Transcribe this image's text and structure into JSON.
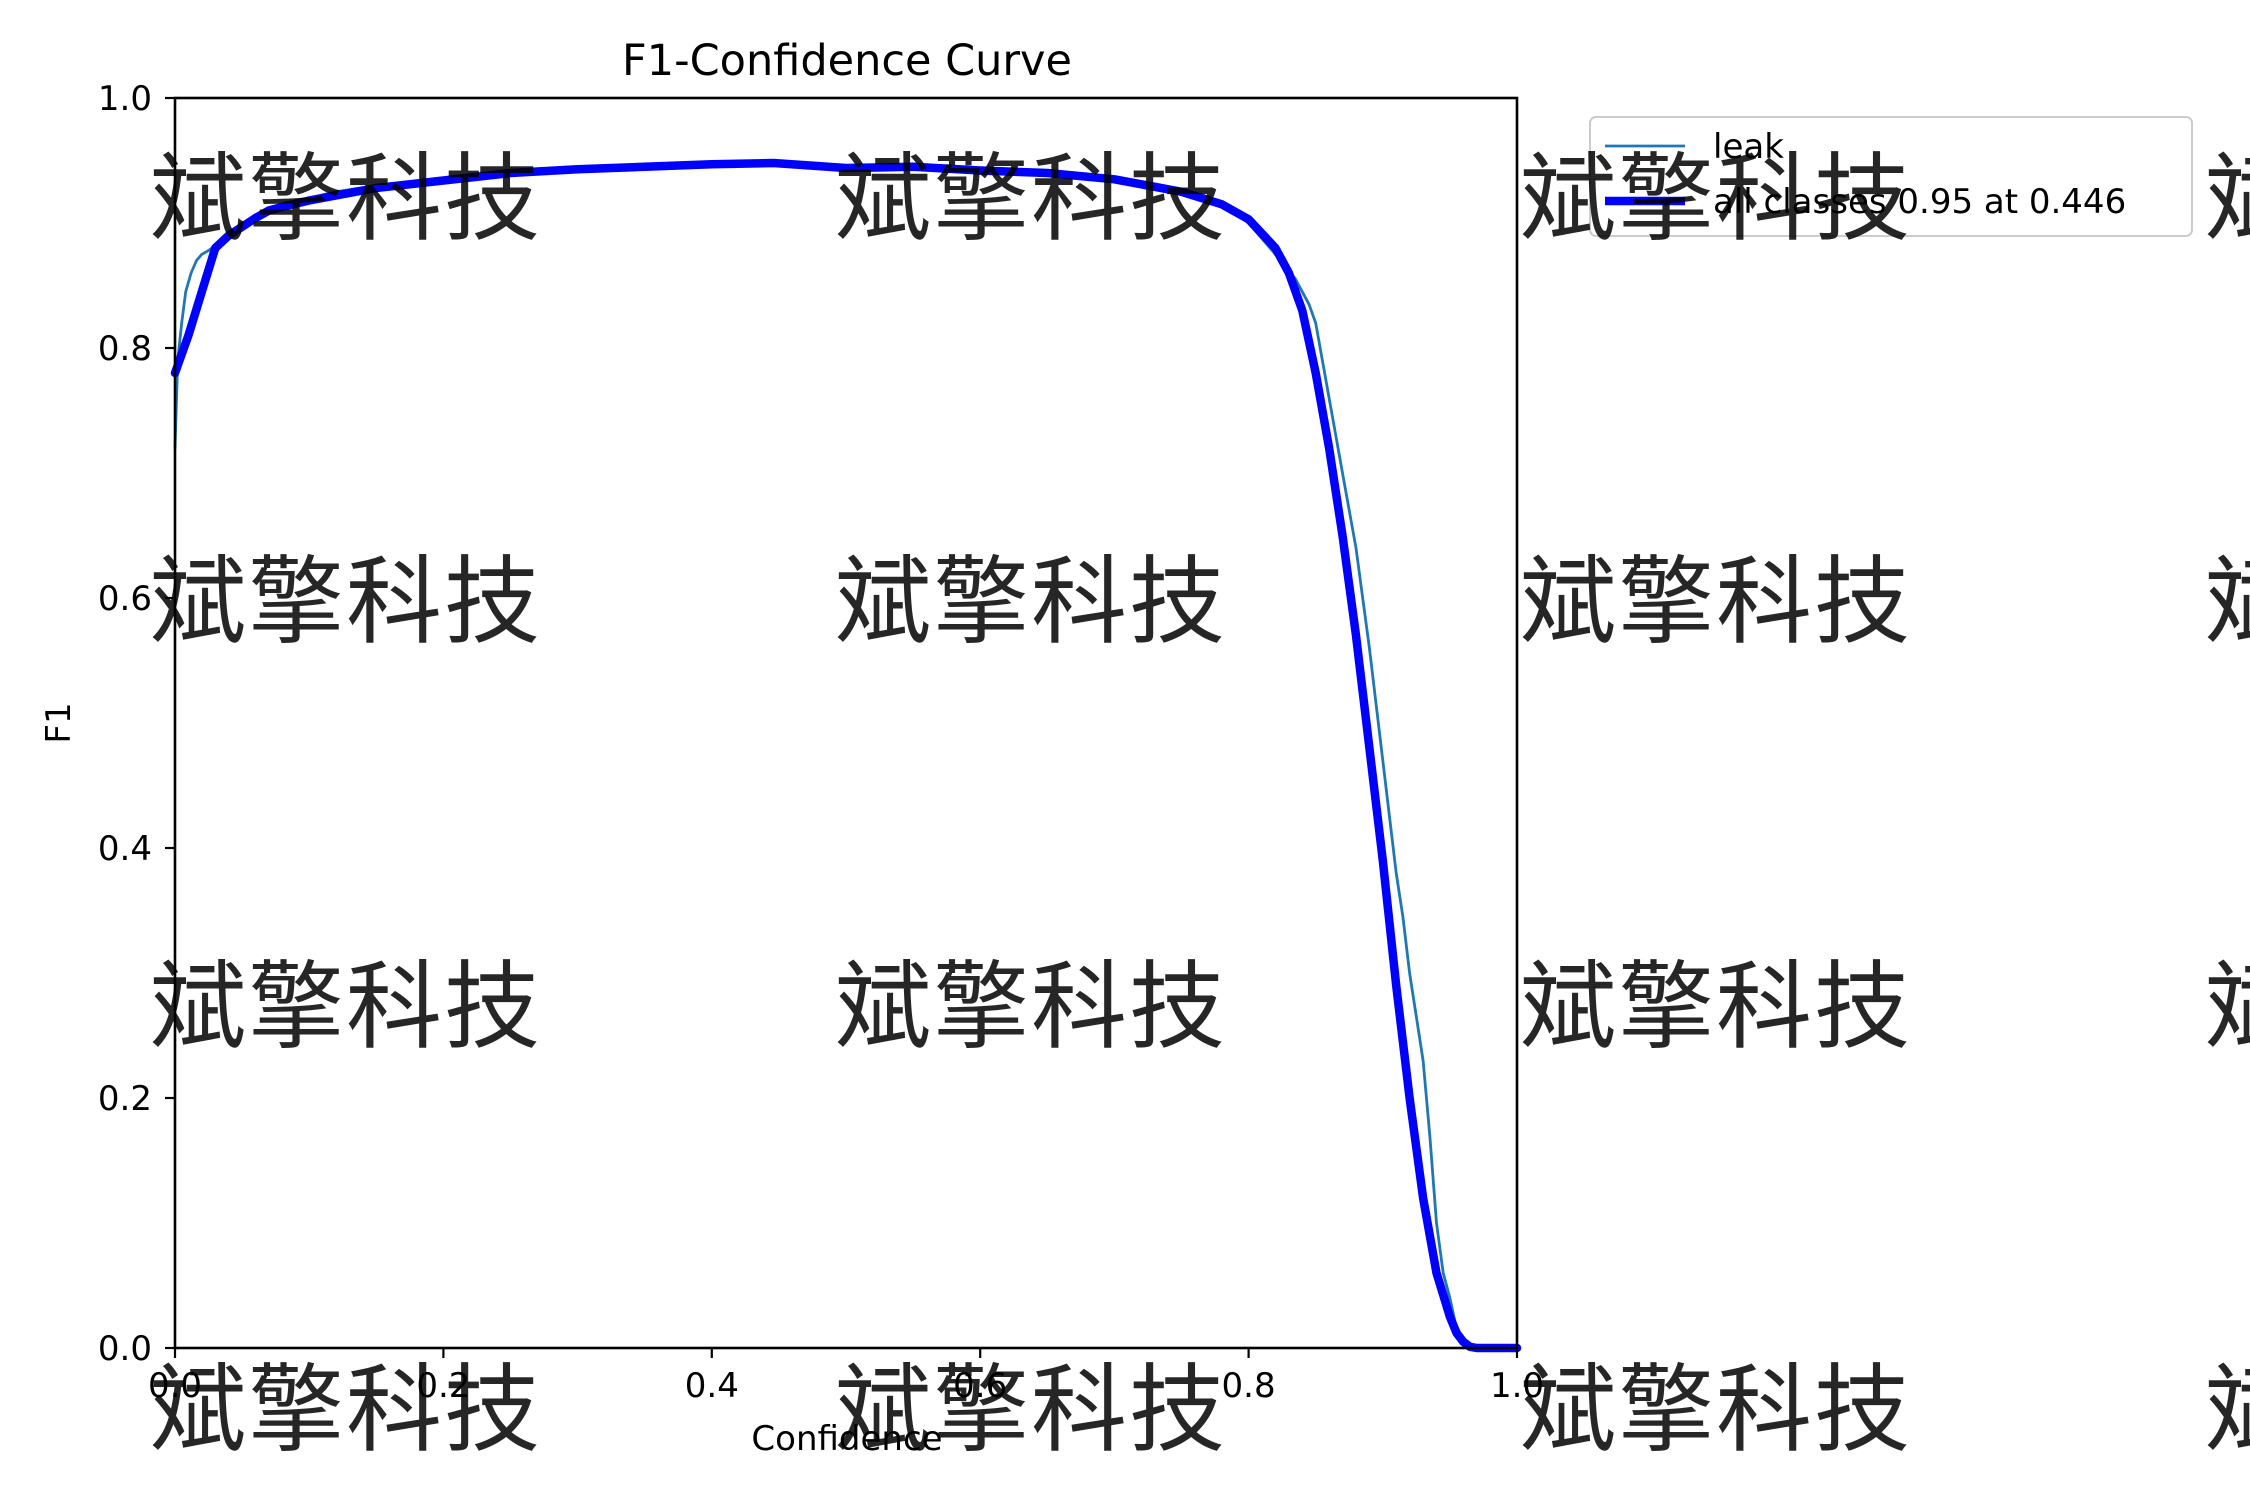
{
  "chart_data": {
    "type": "line",
    "title": "F1-Confidence Curve",
    "xlabel": "Confidence",
    "ylabel": "F1",
    "xlim": [
      0.0,
      1.0
    ],
    "ylim": [
      0.0,
      1.0
    ],
    "x_ticks": [
      0.0,
      0.2,
      0.4,
      0.6,
      0.8,
      1.0
    ],
    "y_ticks": [
      0.0,
      0.2,
      0.4,
      0.6,
      0.8,
      1.0
    ],
    "x_tick_labels": [
      "0.0",
      "0.2",
      "0.4",
      "0.6",
      "0.8",
      "1.0"
    ],
    "y_tick_labels": [
      "0.0",
      "0.2",
      "0.4",
      "0.6",
      "0.8",
      "1.0"
    ],
    "grid": false,
    "legend": {
      "placement": "outside-top-right"
    },
    "series": [
      {
        "name": "leak",
        "color": "#1f77b4",
        "style": "thin",
        "x": [
          0.0,
          0.002,
          0.005,
          0.008,
          0.012,
          0.016,
          0.02,
          0.025,
          0.03,
          0.04,
          0.05,
          0.06,
          0.07,
          0.08,
          0.1,
          0.12,
          0.15,
          0.2,
          0.25,
          0.3,
          0.35,
          0.4,
          0.446,
          0.5,
          0.55,
          0.6,
          0.65,
          0.7,
          0.75,
          0.78,
          0.8,
          0.82,
          0.835,
          0.845,
          0.85,
          0.86,
          0.87,
          0.88,
          0.89,
          0.9,
          0.91,
          0.915,
          0.92,
          0.93,
          0.935,
          0.94,
          0.945,
          0.95,
          0.955,
          0.96,
          0.965,
          0.97,
          0.98,
          0.99,
          1.0
        ],
        "y": [
          0.72,
          0.79,
          0.82,
          0.845,
          0.86,
          0.87,
          0.875,
          0.878,
          0.882,
          0.89,
          0.898,
          0.905,
          0.91,
          0.914,
          0.92,
          0.925,
          0.93,
          0.935,
          0.941,
          0.943,
          0.945,
          0.947,
          0.948,
          0.944,
          0.945,
          0.942,
          0.94,
          0.935,
          0.925,
          0.915,
          0.9,
          0.875,
          0.855,
          0.835,
          0.82,
          0.76,
          0.7,
          0.64,
          0.56,
          0.47,
          0.38,
          0.345,
          0.3,
          0.23,
          0.17,
          0.1,
          0.06,
          0.04,
          0.015,
          0.004,
          0.0,
          0.0,
          0.0,
          0.0,
          0.0
        ]
      },
      {
        "name": "all classes 0.95 at 0.446",
        "color": "#0000ff",
        "style": "thick",
        "x": [
          0.0,
          0.01,
          0.02,
          0.03,
          0.04,
          0.05,
          0.06,
          0.07,
          0.08,
          0.1,
          0.12,
          0.15,
          0.2,
          0.25,
          0.3,
          0.35,
          0.4,
          0.446,
          0.5,
          0.55,
          0.6,
          0.65,
          0.7,
          0.75,
          0.78,
          0.8,
          0.82,
          0.83,
          0.84,
          0.85,
          0.86,
          0.87,
          0.88,
          0.89,
          0.9,
          0.91,
          0.92,
          0.93,
          0.94,
          0.95,
          0.955,
          0.96,
          0.965,
          0.97,
          0.975,
          0.98,
          0.99,
          1.0
        ],
        "y": [
          0.78,
          0.81,
          0.845,
          0.88,
          0.89,
          0.897,
          0.904,
          0.91,
          0.913,
          0.918,
          0.922,
          0.928,
          0.934,
          0.94,
          0.943,
          0.945,
          0.947,
          0.948,
          0.944,
          0.945,
          0.942,
          0.94,
          0.935,
          0.925,
          0.915,
          0.903,
          0.88,
          0.86,
          0.83,
          0.78,
          0.72,
          0.65,
          0.57,
          0.48,
          0.39,
          0.29,
          0.2,
          0.12,
          0.06,
          0.025,
          0.012,
          0.005,
          0.001,
          0.0,
          0.0,
          0.0,
          0.0,
          0.0
        ]
      }
    ]
  },
  "watermark": {
    "text": "斌擎科技"
  }
}
